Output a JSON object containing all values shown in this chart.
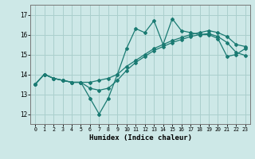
{
  "title": "",
  "xlabel": "Humidex (Indice chaleur)",
  "ylabel": "",
  "xlim": [
    -0.5,
    23.5
  ],
  "ylim": [
    11.5,
    17.5
  ],
  "yticks": [
    12,
    13,
    14,
    15,
    16,
    17
  ],
  "xticks": [
    0,
    1,
    2,
    3,
    4,
    5,
    6,
    7,
    8,
    9,
    10,
    11,
    12,
    13,
    14,
    15,
    16,
    17,
    18,
    19,
    20,
    21,
    22,
    23
  ],
  "bg_color": "#cde8e7",
  "line_color": "#1a7a72",
  "grid_color": "#aacfcd",
  "series": [
    [
      13.5,
      14.0,
      13.8,
      13.7,
      13.6,
      13.6,
      12.8,
      12.0,
      12.8,
      14.0,
      15.3,
      16.3,
      16.1,
      16.7,
      15.5,
      16.8,
      16.2,
      16.1,
      16.0,
      16.0,
      15.8,
      14.9,
      15.0,
      15.3
    ],
    [
      13.5,
      14.0,
      13.8,
      13.7,
      13.6,
      13.6,
      13.6,
      13.7,
      13.8,
      14.0,
      14.4,
      14.7,
      15.0,
      15.3,
      15.5,
      15.7,
      15.85,
      16.0,
      16.1,
      16.2,
      16.1,
      15.9,
      15.5,
      15.4
    ],
    [
      13.5,
      14.0,
      13.8,
      13.7,
      13.6,
      13.6,
      13.3,
      13.2,
      13.3,
      13.7,
      14.2,
      14.6,
      14.9,
      15.2,
      15.4,
      15.6,
      15.75,
      15.9,
      16.0,
      16.05,
      15.9,
      15.6,
      15.1,
      14.95
    ]
  ]
}
